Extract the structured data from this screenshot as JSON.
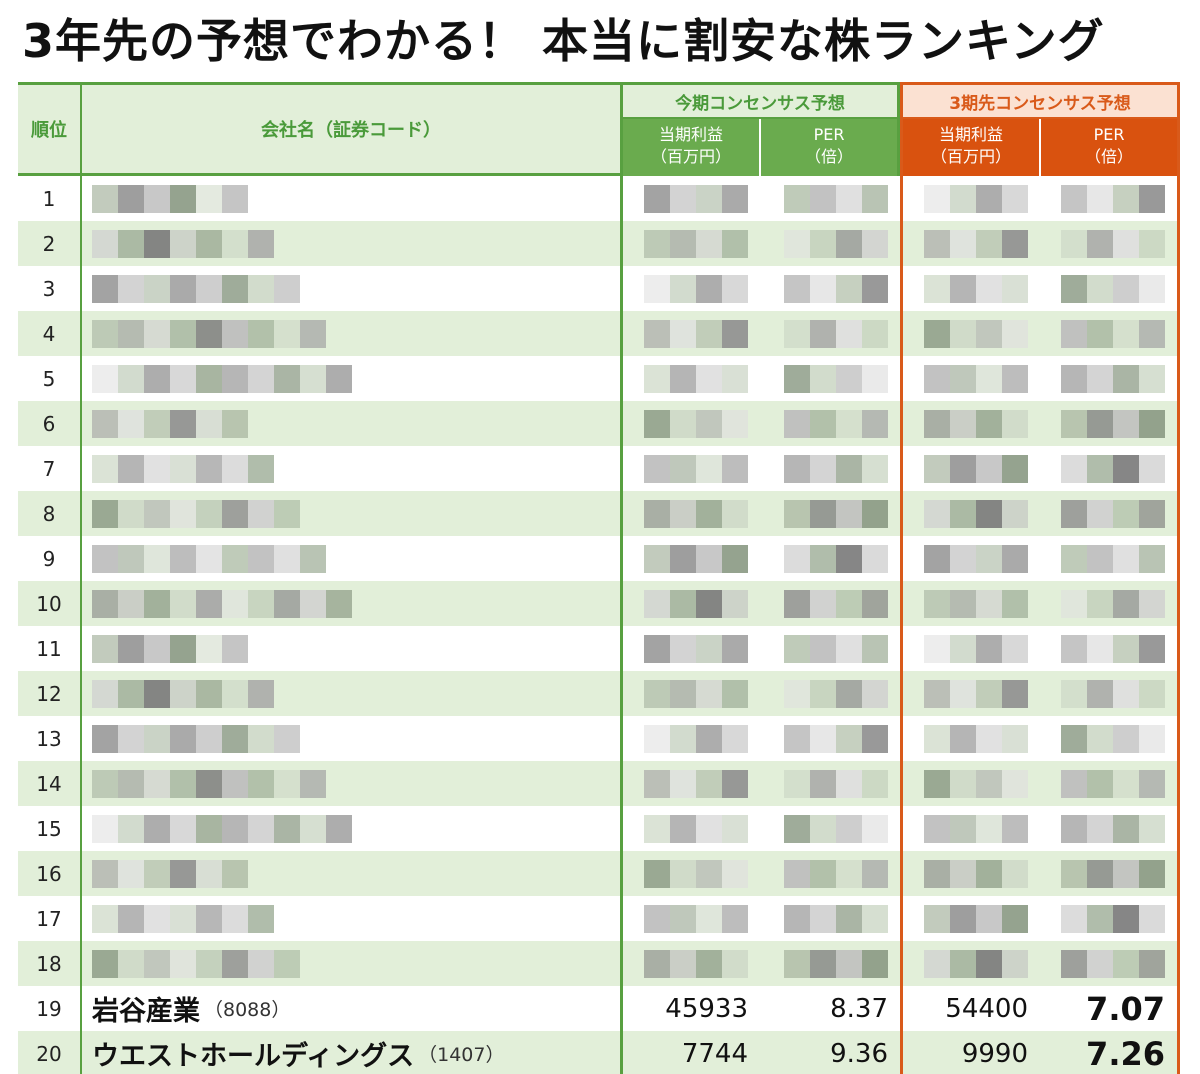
{
  "title": "3年先の予想でわかる！ 本当に割安な株ランキング",
  "header": {
    "rank": "順位",
    "company": "会社名（証券コード）",
    "current_group": "今期コンセンサス予想",
    "future_group": "3期先コンセンサス予想",
    "profit_line1": "当期利益",
    "profit_line2": "（百万円）",
    "per_line1": "PER",
    "per_line2": "（倍）"
  },
  "rows": [
    {
      "rank": "1"
    },
    {
      "rank": "2"
    },
    {
      "rank": "3"
    },
    {
      "rank": "4"
    },
    {
      "rank": "5"
    },
    {
      "rank": "6"
    },
    {
      "rank": "7"
    },
    {
      "rank": "8"
    },
    {
      "rank": "9"
    },
    {
      "rank": "10"
    },
    {
      "rank": "11"
    },
    {
      "rank": "12"
    },
    {
      "rank": "13"
    },
    {
      "rank": "14"
    },
    {
      "rank": "15"
    },
    {
      "rank": "16"
    },
    {
      "rank": "17"
    },
    {
      "rank": "18"
    },
    {
      "rank": "19",
      "name": "岩谷産業",
      "code": "（8088）",
      "cur_profit": "45933",
      "cur_per": "8.37",
      "fut_profit": "54400",
      "fut_per": "7.07"
    },
    {
      "rank": "20",
      "name": "ウエストホールディングス",
      "code": "（1407）",
      "cur_profit": "7744",
      "cur_per": "9.36",
      "fut_profit": "9990",
      "fut_per": "7.26"
    }
  ],
  "colors": {
    "green": "#58a040",
    "green_fill": "#6aab4e",
    "green_light": "#e2efd9",
    "orange": "#d95a1a",
    "orange_light": "#fbe1d2"
  }
}
